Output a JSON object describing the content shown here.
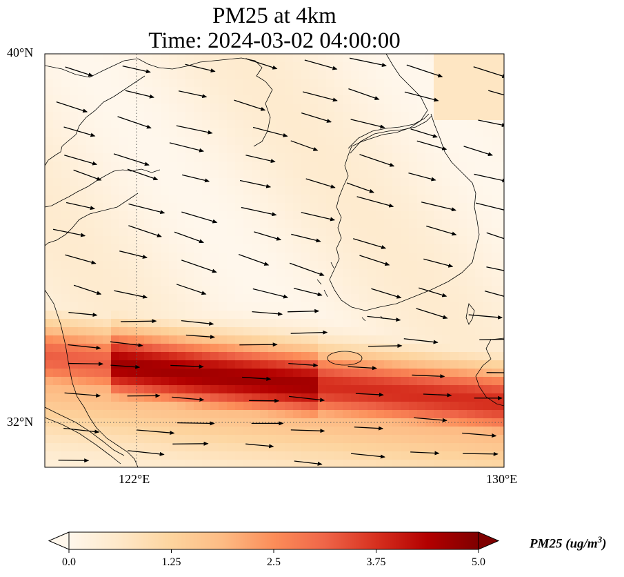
{
  "title_line1": "PM25 at 4km",
  "title_line2": "Time: 2024-03-02 04:00:00",
  "lat_ticks": [
    "40°N",
    "32°N"
  ],
  "lon_ticks": [
    "122°E",
    "130°E"
  ],
  "map": {
    "lon_range": [
      120,
      130
    ],
    "lat_range": [
      31,
      40
    ],
    "gridline_lons": [
      122
    ],
    "gridline_lats": [
      32
    ],
    "plume_axis": {
      "west_lat": 33.4,
      "mid_lon": 123.5,
      "mid_lat": 33.0,
      "east_lon": 130,
      "east_lat": 32.4
    },
    "colormap": "OrRd",
    "wind_vectors": "west-to-east, slightly southward"
  },
  "colorbar": {
    "label": "PM25 (ug/m",
    "label_sup": "3",
    "label_close": ")",
    "ticks": [
      "0.0",
      "1.25",
      "2.5",
      "3.75",
      "5.0"
    ],
    "vmin": 0,
    "vmax": 5,
    "colors": [
      "#fff7ec",
      "#fee8c8",
      "#fdd49e",
      "#fdbb84",
      "#fc8d59",
      "#ef6548",
      "#d7301f",
      "#b30000",
      "#7f0000"
    ]
  }
}
